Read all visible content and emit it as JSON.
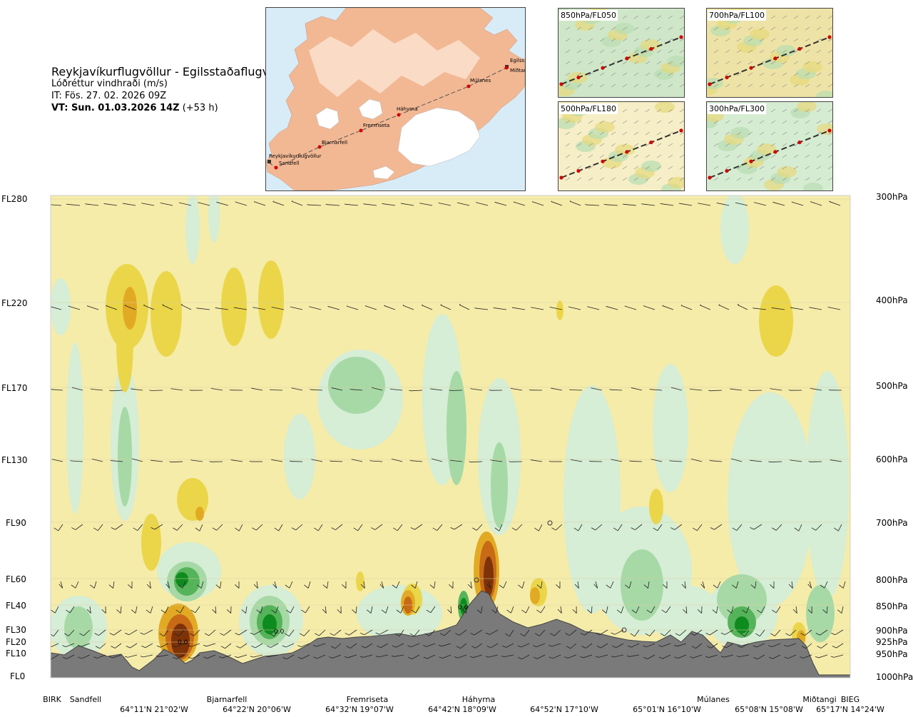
{
  "header": {
    "title": "Reykjavíkurflugvöllur - Egilsstaðaflugvöllur",
    "subtitle": "Lóðréttur vindhraði (m/s)",
    "issue_time": "IT: Fös. 27. 02. 2026 09Z",
    "valid_time": "VT: Sun. 01.03.2026 14Z",
    "lead_time": " (+53 h)"
  },
  "overview_map": {
    "waypoints": [
      "Reykjavíkurflugvöllur",
      "Sandfell",
      "Bjarnarfell",
      "Fremriseta",
      "Háhyrna",
      "Múlanes",
      "Egilss",
      "Miðtangi"
    ],
    "route_color": "#d40000",
    "land_color": "#f2b894",
    "sea_color": "#d8ecf8",
    "ice_color": "#ffffff"
  },
  "mini_maps": [
    {
      "label": "850hPa/FL050"
    },
    {
      "label": "700hPa/FL100"
    },
    {
      "label": "500hPa/FL180"
    },
    {
      "label": "300hPa/FL300"
    }
  ],
  "cross_section": {
    "flight_levels": [
      "FL280",
      "FL220",
      "FL170",
      "FL130",
      "FL90",
      "FL60",
      "FL40",
      "FL30",
      "FL20",
      "FL10",
      "FL0"
    ],
    "pressure_levels": [
      "300hPa",
      "400hPa",
      "500hPa",
      "600hPa",
      "700hPa",
      "800hPa",
      "850hPa",
      "900hPa",
      "925hPa",
      "950hPa",
      "1000hPa"
    ],
    "bottom_stations": [
      "BIRK",
      "Sandfell",
      "Bjarnarfell",
      "Fremriseta",
      "Háhyrna",
      "Múlanes",
      "Miðtangi",
      "BIEG"
    ],
    "coordinates": [
      "64°11'N 21°02'W",
      "64°22'N 20°06'W",
      "64°32'N 19°07'W",
      "64°42'N 18°09'W",
      "64°52'N 17°10'W",
      "65°01'N 16°10'W",
      "65°08'N 15°08'W",
      "65°17'N 14°24'W"
    ],
    "contour_labels": [
      "0.0",
      "0.0",
      "0.0"
    ],
    "colors": {
      "background": "#f5ecaa",
      "yellow": "#ebd64a",
      "gold": "#e2aa24",
      "orange": "#c86a16",
      "brown": "#7d3208",
      "pale_green": "#d6edd6",
      "light_green": "#a6d9a6",
      "mid_green": "#55b35a",
      "dark_green": "#0e8b1e",
      "terrain": "#7a7a7a"
    }
  }
}
